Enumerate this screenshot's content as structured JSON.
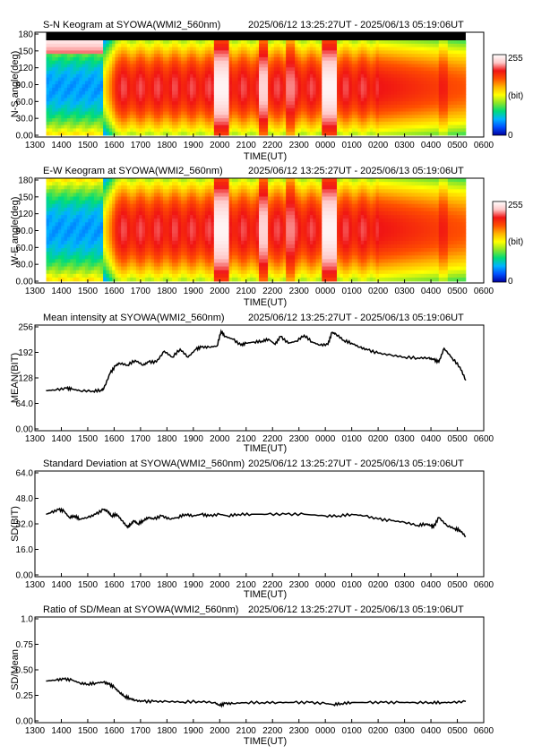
{
  "time_axis_labels": [
    "1300",
    "1400",
    "1500",
    "1600",
    "1700",
    "1800",
    "1900",
    "2000",
    "2100",
    "2200",
    "2300",
    "0000",
    "0100",
    "0200",
    "0300",
    "0400",
    "0500",
    "0600"
  ],
  "time_axis_title": "TIME(UT)",
  "date_range": "2025/06/12 13:25:27UT - 2025/06/13 05:19:06UT",
  "colorbar": {
    "max_label": "255",
    "unit_label": "(bit)",
    "min_label": "0"
  },
  "chart_data": [
    {
      "type": "heatmap",
      "title": "S-N Keogram at SYOWA(WMI2_560nm)",
      "xlabel": "TIME(UT)",
      "ylabel": "N-S angle(deg)",
      "y_ticks": [
        "180",
        "150",
        "120",
        "90.0",
        "60.0",
        "30.0",
        "0.00"
      ],
      "ylim": [
        0,
        180
      ],
      "xlim_hours": [
        13,
        30
      ],
      "data_range_hours": [
        13.424,
        29.318
      ],
      "value_range": [
        0,
        255
      ],
      "colorscale": [
        "#0000a0",
        "#0050ff",
        "#00b4ff",
        "#00dc78",
        "#8ce628",
        "#ffff00",
        "#ffb400",
        "#ff5000",
        "#f01414",
        "#ffc8c8",
        "#ffffff"
      ]
    },
    {
      "type": "heatmap",
      "title": "E-W Keogram at SYOWA(WMI2_560nm)",
      "xlabel": "TIME(UT)",
      "ylabel": "W-E angle(deg)",
      "y_ticks": [
        "180",
        "150",
        "120",
        "90.0",
        "60.0",
        "30.0",
        "0.00"
      ],
      "ylim": [
        0,
        180
      ],
      "xlim_hours": [
        13,
        30
      ],
      "data_range_hours": [
        13.424,
        29.318
      ],
      "value_range": [
        0,
        255
      ]
    },
    {
      "type": "line",
      "title": "Mean intensity at SYOWA(WMI2_560nm)",
      "xlabel": "TIME(UT)",
      "ylabel": "MEAN(BIT)",
      "y_ticks": [
        "256",
        "192",
        "128",
        "64.0",
        "0.00"
      ],
      "ylim": [
        0,
        256
      ],
      "series": [
        {
          "x": [
            13.42,
            13.8,
            14.2,
            14.4,
            14.7,
            15.2,
            15.5,
            15.6,
            15.85,
            16.05,
            16.2,
            16.5,
            16.8,
            17.1,
            17.3,
            17.6,
            17.9,
            18.2,
            18.5,
            18.8,
            19.1,
            19.3,
            19.6,
            19.9,
            20.05,
            20.2,
            20.5,
            20.8,
            21.0,
            21.3,
            21.6,
            21.85,
            22.1,
            22.3,
            22.6,
            22.9,
            23.2,
            23.5,
            23.8,
            24.1,
            24.25,
            24.4,
            24.7,
            25.0,
            25.3,
            25.6,
            26.0,
            26.5,
            27.0,
            27.5,
            27.9,
            28.1,
            28.3,
            28.5,
            28.8,
            29.1,
            29.32
          ],
          "y": [
            96,
            98,
            102,
            100,
            96,
            95,
            97,
            100,
            140,
            158,
            165,
            160,
            172,
            160,
            168,
            168,
            195,
            180,
            200,
            180,
            200,
            205,
            205,
            208,
            245,
            232,
            225,
            210,
            215,
            218,
            220,
            225,
            212,
            232,
            215,
            220,
            235,
            218,
            210,
            212,
            242,
            238,
            222,
            215,
            205,
            198,
            190,
            185,
            180,
            178,
            178,
            174,
            168,
            202,
            178,
            155,
            122
          ]
        }
      ]
    },
    {
      "type": "line",
      "title": "Standard Deviation at SYOWA(WMI2_560nm)",
      "xlabel": "TIME(UT)",
      "ylabel": "SD(BIT)",
      "y_ticks": [
        "64.0",
        "48.0",
        "32.0",
        "16.0",
        "0.00"
      ],
      "ylim": [
        0,
        64
      ],
      "series": [
        {
          "x": [
            13.42,
            13.6,
            13.9,
            14.1,
            14.3,
            14.5,
            14.7,
            15.0,
            15.3,
            15.6,
            15.75,
            15.9,
            16.1,
            16.3,
            16.5,
            16.6,
            16.75,
            16.9,
            17.1,
            17.3,
            17.5,
            17.8,
            18.1,
            18.4,
            18.7,
            19.0,
            19.3,
            19.6,
            20.0,
            20.3,
            20.7,
            21.2,
            21.8,
            22.5,
            23.2,
            24.0,
            24.5,
            25.0,
            25.5,
            26.0,
            26.5,
            27.0,
            27.5,
            27.8,
            28.0,
            28.1,
            28.3,
            28.6,
            28.9,
            29.1,
            29.32
          ],
          "y": [
            38,
            39,
            41,
            40,
            36,
            37,
            35,
            36,
            38,
            41,
            40,
            37,
            38,
            34,
            30,
            31,
            34,
            32,
            34,
            36,
            35,
            37,
            35,
            36,
            38,
            37,
            38,
            37,
            38,
            37,
            38,
            38,
            38,
            38,
            38,
            37,
            37,
            38,
            37,
            35,
            34,
            33,
            31,
            32,
            31,
            30,
            36,
            31,
            29,
            28,
            24
          ]
        }
      ]
    },
    {
      "type": "line",
      "title": "Ratio of SD/Mean at SYOWA(WMI2_560nm)",
      "xlabel": "TIME(UT)",
      "ylabel": "SD/Mean",
      "y_ticks": [
        "1.0",
        "0.75",
        "0.50",
        "0.25",
        "0.00"
      ],
      "ylim": [
        0,
        1
      ],
      "series": [
        {
          "x": [
            13.42,
            13.8,
            14.1,
            14.4,
            14.7,
            15.0,
            15.3,
            15.6,
            15.8,
            16.0,
            16.2,
            16.4,
            16.6,
            16.8,
            17.1,
            17.5,
            18.0,
            18.6,
            19.2,
            19.8,
            20.0,
            20.2,
            20.5,
            21.0,
            21.6,
            22.2,
            22.8,
            23.4,
            24.0,
            24.3,
            24.6,
            25.0,
            25.6,
            26.2,
            26.8,
            27.4,
            28.0,
            28.4,
            28.8,
            29.32
          ],
          "y": [
            0.39,
            0.4,
            0.41,
            0.4,
            0.37,
            0.36,
            0.37,
            0.38,
            0.36,
            0.33,
            0.28,
            0.24,
            0.22,
            0.2,
            0.19,
            0.19,
            0.19,
            0.185,
            0.19,
            0.18,
            0.15,
            0.17,
            0.17,
            0.18,
            0.18,
            0.18,
            0.18,
            0.18,
            0.17,
            0.16,
            0.17,
            0.18,
            0.18,
            0.18,
            0.18,
            0.18,
            0.18,
            0.18,
            0.18,
            0.19
          ]
        }
      ]
    }
  ]
}
